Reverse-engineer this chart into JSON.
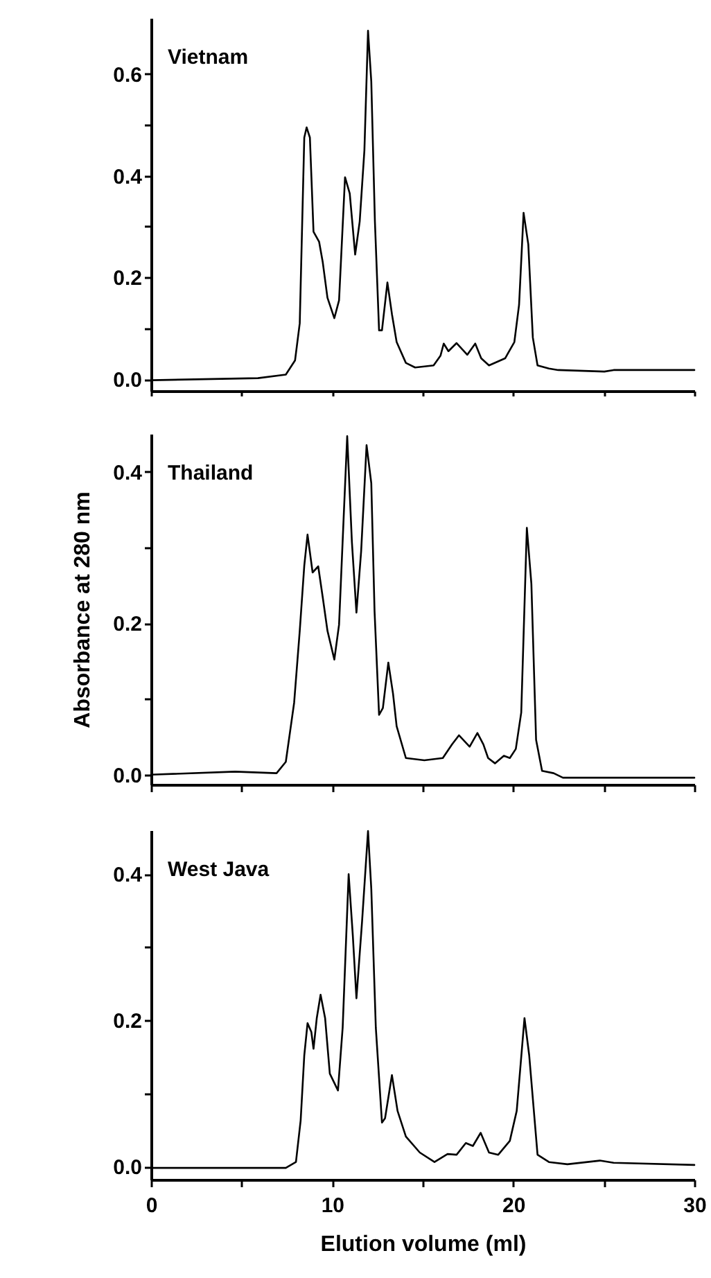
{
  "chart_data": [
    {
      "type": "line",
      "title": "Vietnam",
      "tick_labels": "y",
      "xlim": [
        0,
        30
      ],
      "xticks": [
        {
          "value": 0,
          "label": null
        },
        {
          "value": 5,
          "label": null
        },
        {
          "value": 10,
          "label": null
        },
        {
          "value": 15,
          "label": null
        },
        {
          "value": 20,
          "label": null
        },
        {
          "value": 25,
          "label": null
        },
        {
          "value": 30,
          "label": null
        }
      ],
      "ylim": [
        -0.023,
        0.71
      ],
      "yticks": [
        {
          "value": 0,
          "label": "0.0"
        },
        {
          "value": 0.1,
          "label": null
        },
        0.2,
        {
          "value": 0.3,
          "label": null
        },
        0.4,
        {
          "value": 0.5,
          "label": null
        },
        0.6
      ],
      "x": [
        0,
        5.9,
        7.44,
        7.95,
        8.21,
        8.46,
        8.59,
        8.77,
        8.97,
        9.28,
        9.48,
        9.74,
        10.12,
        10.38,
        10.71,
        10.97,
        11.27,
        11.52,
        11.78,
        11.98,
        12.16,
        12.36,
        12.59,
        12.75,
        13.05,
        13.3,
        13.56,
        14.07,
        14.58,
        15.6,
        15.98,
        16.16,
        16.42,
        16.87,
        17.46,
        17.9,
        18.23,
        18.66,
        19.55,
        20.06,
        20.32,
        20.57,
        20.83,
        21.08,
        21.34,
        21.97,
        22.48,
        25.03,
        25.54,
        30
      ],
      "series": [
        {
          "color": "#000000",
          "values": [
            -0.002,
            0.002,
            0.009,
            0.037,
            0.11,
            0.475,
            0.495,
            0.475,
            0.29,
            0.27,
            0.23,
            0.16,
            0.12,
            0.155,
            0.397,
            0.365,
            0.245,
            0.31,
            0.45,
            0.685,
            0.585,
            0.31,
            0.096,
            0.096,
            0.19,
            0.128,
            0.073,
            0.032,
            0.023,
            0.027,
            0.046,
            0.07,
            0.055,
            0.071,
            0.048,
            0.07,
            0.041,
            0.027,
            0.041,
            0.073,
            0.146,
            0.327,
            0.265,
            0.082,
            0.027,
            0.021,
            0.018,
            0.015,
            0.018,
            0.018
          ]
        }
      ]
    },
    {
      "type": "line",
      "title": "Thailand",
      "ylabel": "Absorbance at 280 nm",
      "tick_labels": "y",
      "xlim": [
        0,
        30
      ],
      "xticks": [
        {
          "value": 0,
          "label": null
        },
        {
          "value": 5,
          "label": null
        },
        {
          "value": 10,
          "label": null
        },
        {
          "value": 15,
          "label": null
        },
        {
          "value": 20,
          "label": null
        },
        {
          "value": 25,
          "label": null
        },
        {
          "value": 30,
          "label": null
        }
      ],
      "ylim": [
        -0.013,
        0.45
      ],
      "yticks": [
        {
          "value": 0,
          "label": "0.0"
        },
        {
          "value": 0.1,
          "label": null
        },
        0.2,
        {
          "value": 0.3,
          "label": null
        },
        0.4
      ],
      "x": [
        0,
        4.64,
        6.93,
        7.44,
        7.9,
        8.21,
        8.46,
        8.64,
        8.92,
        9.23,
        9.48,
        9.74,
        10.12,
        10.38,
        10.63,
        10.83,
        11.09,
        11.34,
        11.6,
        11.9,
        12.16,
        12.34,
        12.59,
        12.8,
        13.1,
        13.36,
        13.56,
        14.07,
        15.09,
        16.11,
        16.62,
        17.0,
        17.59,
        18.02,
        18.35,
        18.61,
        18.99,
        19.48,
        19.81,
        20.14,
        20.44,
        20.75,
        21.0,
        21.26,
        21.59,
        22.23,
        22.74,
        30
      ],
      "series": [
        {
          "color": "#000000",
          "values": [
            0,
            0.004,
            0.002,
            0.017,
            0.095,
            0.19,
            0.276,
            0.317,
            0.267,
            0.275,
            0.234,
            0.19,
            0.152,
            0.198,
            0.337,
            0.447,
            0.307,
            0.214,
            0.295,
            0.435,
            0.385,
            0.216,
            0.079,
            0.088,
            0.148,
            0.107,
            0.064,
            0.022,
            0.019,
            0.022,
            0.04,
            0.052,
            0.037,
            0.055,
            0.04,
            0.022,
            0.015,
            0.025,
            0.022,
            0.034,
            0.082,
            0.326,
            0.252,
            0.046,
            0.005,
            0.002,
            -0.004,
            -0.004
          ]
        }
      ]
    },
    {
      "type": "line",
      "title": "West Java",
      "xlabel": "Elution volume (ml)",
      "xlim": [
        0,
        30
      ],
      "xticks": [
        0,
        {
          "value": 5,
          "label": null
        },
        10,
        {
          "value": 15,
          "label": null
        },
        20,
        {
          "value": 25,
          "label": null
        },
        30
      ],
      "ylim": [
        -0.018,
        0.46
      ],
      "yticks": [
        {
          "value": 0,
          "label": "0.0"
        },
        {
          "value": 0.1,
          "label": null
        },
        0.2,
        {
          "value": 0.3,
          "label": null
        },
        0.4
      ],
      "x": [
        0,
        7.44,
        8.0,
        8.26,
        8.46,
        8.64,
        8.85,
        8.97,
        9.15,
        9.36,
        9.61,
        9.87,
        10.32,
        10.58,
        10.91,
        11.14,
        11.34,
        11.65,
        11.98,
        12.16,
        12.41,
        12.75,
        12.92,
        13.3,
        13.61,
        14.07,
        14.84,
        15.65,
        16.37,
        16.87,
        17.38,
        17.77,
        18.2,
        18.66,
        19.17,
        19.81,
        20.19,
        20.62,
        20.88,
        21.34,
        21.97,
        22.99,
        24.78,
        25.54,
        30
      ],
      "series": [
        {
          "color": "#000000",
          "values": [
            -0.002,
            -0.002,
            0.006,
            0.063,
            0.152,
            0.196,
            0.184,
            0.161,
            0.203,
            0.235,
            0.203,
            0.127,
            0.104,
            0.19,
            0.4,
            0.316,
            0.23,
            0.335,
            0.459,
            0.38,
            0.19,
            0.06,
            0.066,
            0.125,
            0.076,
            0.041,
            0.019,
            0.006,
            0.017,
            0.016,
            0.032,
            0.028,
            0.046,
            0.019,
            0.016,
            0.035,
            0.076,
            0.203,
            0.152,
            0.016,
            0.006,
            0.003,
            0.008,
            0.005,
            0.002
          ]
        }
      ]
    }
  ]
}
